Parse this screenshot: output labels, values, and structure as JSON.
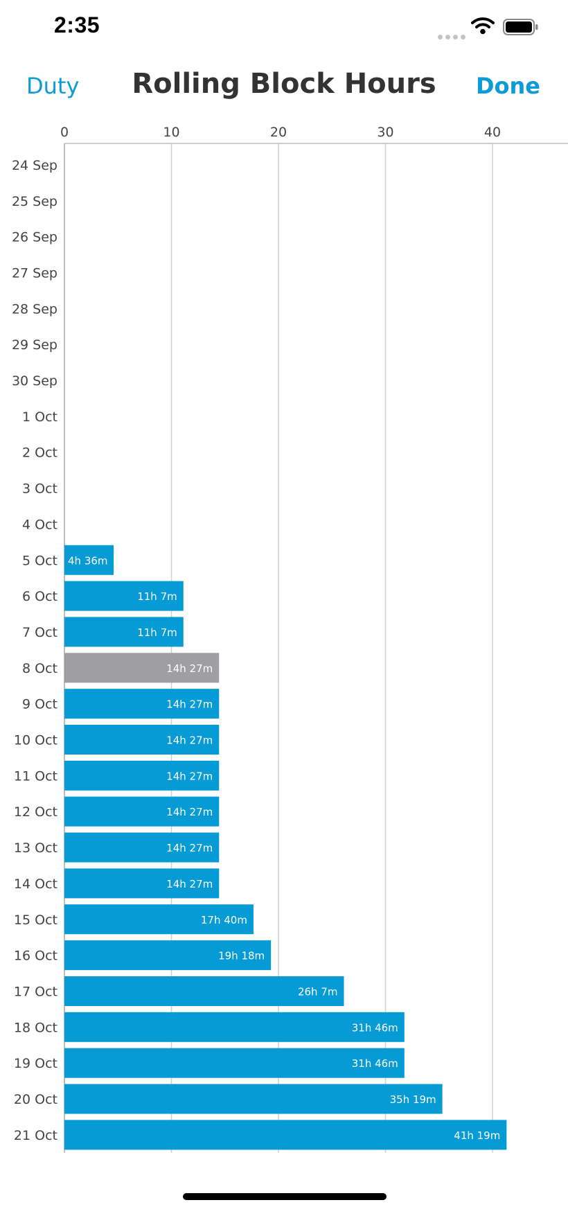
{
  "status_bar": {
    "time": "2:35"
  },
  "nav": {
    "left_label": "Duty",
    "title": "Rolling Block Hours",
    "right_label": "Done"
  },
  "colors": {
    "accent": "#0c9bd6",
    "bar": "#079bd6",
    "bar_highlight": "#9e9ea3",
    "grid": "#cfcfcf"
  },
  "chart_data": {
    "type": "bar",
    "orientation": "horizontal",
    "title": "Rolling Block Hours",
    "xlim": [
      0,
      45
    ],
    "xticks": [
      0,
      10,
      20,
      30,
      40
    ],
    "grid": true,
    "categories": [
      "24 Sep",
      "25 Sep",
      "26 Sep",
      "27 Sep",
      "28 Sep",
      "29 Sep",
      "30 Sep",
      "1 Oct",
      "2 Oct",
      "3 Oct",
      "4 Oct",
      "5 Oct",
      "6 Oct",
      "7 Oct",
      "8 Oct",
      "9 Oct",
      "10 Oct",
      "11 Oct",
      "12 Oct",
      "13 Oct",
      "14 Oct",
      "15 Oct",
      "16 Oct",
      "17 Oct",
      "18 Oct",
      "19 Oct",
      "20 Oct",
      "21 Oct"
    ],
    "values": [
      0,
      0,
      0,
      0,
      0,
      0,
      0,
      0,
      0,
      0,
      0,
      4.6,
      11.117,
      11.117,
      14.45,
      14.45,
      14.45,
      14.45,
      14.45,
      14.45,
      14.45,
      17.667,
      19.3,
      26.117,
      31.767,
      31.767,
      35.317,
      41.317
    ],
    "labels": [
      "",
      "",
      "",
      "",
      "",
      "",
      "",
      "",
      "",
      "",
      "",
      "4h 36m",
      "11h 7m",
      "11h 7m",
      "14h 27m",
      "14h 27m",
      "14h 27m",
      "14h 27m",
      "14h 27m",
      "14h 27m",
      "14h 27m",
      "17h 40m",
      "19h 18m",
      "26h 7m",
      "31h 46m",
      "31h 46m",
      "35h 19m",
      "41h 19m"
    ],
    "highlight_category": "8 Oct"
  }
}
